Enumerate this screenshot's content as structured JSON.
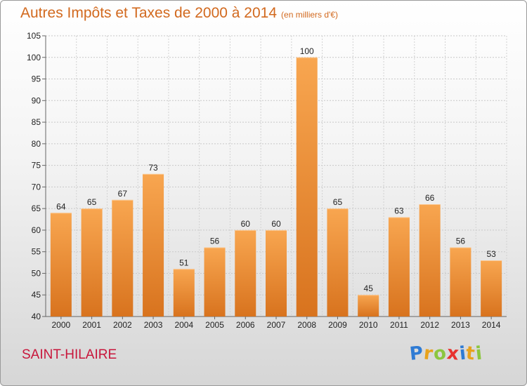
{
  "chart_data": {
    "type": "bar",
    "title": "Autres Impôts et Taxes de 2000 à 2014",
    "subtitle": "(en milliers d'€)",
    "categories": [
      "2000",
      "2001",
      "2002",
      "2003",
      "2004",
      "2005",
      "2006",
      "2007",
      "2008",
      "2009",
      "2010",
      "2011",
      "2012",
      "2013",
      "2014"
    ],
    "values": [
      64,
      65,
      67,
      73,
      51,
      56,
      60,
      60,
      100,
      65,
      45,
      63,
      66,
      56,
      53
    ],
    "ylim": [
      40,
      105
    ],
    "yticks": [
      40,
      45,
      50,
      55,
      60,
      65,
      70,
      75,
      80,
      85,
      90,
      95,
      100,
      105
    ],
    "grid": true,
    "bar_color": "#f0922e",
    "xlabel": "",
    "ylabel": ""
  },
  "footer": {
    "place": "SAINT-HILAIRE",
    "logo_letters": [
      "P",
      "r",
      "o",
      "x",
      "i",
      "t",
      "i"
    ],
    "logo_colors": [
      "#2f7bd4",
      "#e8a21c",
      "#8cc63f",
      "#e8322e",
      "#2f7bd4",
      "#e8a21c",
      "#8cc63f"
    ]
  }
}
